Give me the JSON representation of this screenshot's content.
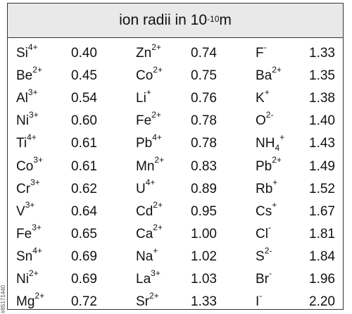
{
  "title": {
    "text": "ion radii in 10",
    "exp": "-10",
    "unit": " m"
  },
  "credit": "#85171440",
  "rows": [
    [
      {
        "sym": "Si",
        "sup": "4+",
        "val": "0.40"
      },
      {
        "sym": "Zn",
        "sup": "2+",
        "val": "0.74"
      },
      {
        "sym": "F",
        "sup": "-",
        "val": "1.33"
      }
    ],
    [
      {
        "sym": "Be",
        "sup": "2+",
        "val": "0.45"
      },
      {
        "sym": "Co",
        "sup": "2+",
        "val": "0.75"
      },
      {
        "sym": "Ba",
        "sup": "2+",
        "val": "1.35"
      }
    ],
    [
      {
        "sym": "Al",
        "sup": "3+",
        "val": "0.54"
      },
      {
        "sym": "Li",
        "sup": "+",
        "val": "0.76"
      },
      {
        "sym": "K",
        "sup": "+",
        "val": "1.38"
      }
    ],
    [
      {
        "sym": "Ni",
        "sup": "3+",
        "val": "0.60"
      },
      {
        "sym": "Fe",
        "sup": "2+",
        "val": "0.78"
      },
      {
        "sym": "O",
        "sup": "2-",
        "val": "1.40"
      }
    ],
    [
      {
        "sym": "Ti",
        "sup": "4+",
        "val": "0.61"
      },
      {
        "sym": "Pb",
        "sup": "4+",
        "val": "0.78"
      },
      {
        "sym": "NH",
        "sub": "4",
        "sup": "+",
        "val": "1.43"
      }
    ],
    [
      {
        "sym": "Co",
        "sup": "3+",
        "val": "0.61"
      },
      {
        "sym": "Mn",
        "sup": "2+",
        "val": "0.83"
      },
      {
        "sym": "Pb",
        "sup": "2+",
        "val": "1.49"
      }
    ],
    [
      {
        "sym": "Cr",
        "sup": "3+",
        "val": "0.62"
      },
      {
        "sym": "U",
        "sup": "4+",
        "val": "0.89"
      },
      {
        "sym": "Rb",
        "sup": "+",
        "val": "1.52"
      }
    ],
    [
      {
        "sym": "V",
        "sup": "3+",
        "val": "0.64"
      },
      {
        "sym": "Cd",
        "sup": "2+",
        "val": "0.95"
      },
      {
        "sym": "Cs",
        "sup": "+",
        "val": "1.67"
      }
    ],
    [
      {
        "sym": "Fe",
        "sup": "3+",
        "val": "0.65"
      },
      {
        "sym": "Ca",
        "sup": "2+",
        "val": "1.00"
      },
      {
        "sym": "Cl",
        "sup": "-",
        "val": "1.81"
      }
    ],
    [
      {
        "sym": "Sn",
        "sup": "4+",
        "val": "0.69"
      },
      {
        "sym": "Na",
        "sup": "+",
        "val": "1.02"
      },
      {
        "sym": "S",
        "sup": "2-",
        "val": "1.84"
      }
    ],
    [
      {
        "sym": "Ni",
        "sup": "2+",
        "val": "0.69"
      },
      {
        "sym": "La",
        "sup": "3+",
        "val": "1.03"
      },
      {
        "sym": "Br",
        "sup": "-",
        "val": "1.96"
      }
    ],
    [
      {
        "sym": "Mg",
        "sup": "2+",
        "val": "0.72"
      },
      {
        "sym": "Sr",
        "sup": "2+",
        "val": "1.33"
      },
      {
        "sym": "I",
        "sup": "-",
        "val": "2.20"
      }
    ]
  ]
}
